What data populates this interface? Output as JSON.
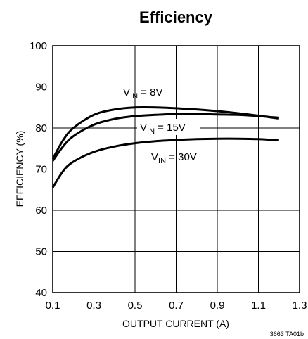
{
  "chart_data": {
    "type": "line",
    "title": "Efficiency",
    "xlabel": "OUTPUT CURRENT (A)",
    "ylabel": "EFFICIENCY (%)",
    "xlim": [
      0.1,
      1.3
    ],
    "ylim": [
      40,
      100
    ],
    "xticks": [
      "0.1",
      "0.3",
      "0.5",
      "0.7",
      "0.9",
      "1.1",
      "1.3"
    ],
    "yticks": [
      "40",
      "50",
      "60",
      "70",
      "80",
      "90",
      "100"
    ],
    "grid": true,
    "legend": "none",
    "series": [
      {
        "name": "VIN = 8V",
        "x": [
          0.1,
          0.15,
          0.2,
          0.3,
          0.4,
          0.5,
          0.6,
          0.7,
          0.8,
          0.9,
          1.0,
          1.1,
          1.2
        ],
        "y": [
          72.5,
          77.0,
          80.0,
          83.2,
          84.5,
          85.0,
          85.0,
          84.8,
          84.5,
          84.1,
          83.6,
          83.0,
          82.3
        ]
      },
      {
        "name": "VIN = 15V",
        "x": [
          0.1,
          0.15,
          0.2,
          0.3,
          0.4,
          0.5,
          0.6,
          0.7,
          0.8,
          0.9,
          1.0,
          1.1,
          1.2
        ],
        "y": [
          72.0,
          75.5,
          78.0,
          80.8,
          82.2,
          82.9,
          83.2,
          83.4,
          83.4,
          83.3,
          83.2,
          82.9,
          82.5
        ]
      },
      {
        "name": "VIN = 30V",
        "x": [
          0.1,
          0.15,
          0.2,
          0.3,
          0.4,
          0.5,
          0.6,
          0.7,
          0.8,
          0.9,
          1.0,
          1.1,
          1.2
        ],
        "y": [
          65.5,
          69.5,
          71.8,
          74.2,
          75.5,
          76.3,
          76.8,
          77.1,
          77.3,
          77.4,
          77.4,
          77.3,
          77.0
        ]
      }
    ],
    "annotations": [
      {
        "text_main": "V",
        "text_sub": "IN",
        "text_rest": " = 8V"
      },
      {
        "text_main": "V",
        "text_sub": "IN",
        "text_rest": " = 15V"
      },
      {
        "text_main": "V",
        "text_sub": "IN",
        "text_rest": " = 30V"
      }
    ],
    "footnote": "3663 TA01b"
  }
}
